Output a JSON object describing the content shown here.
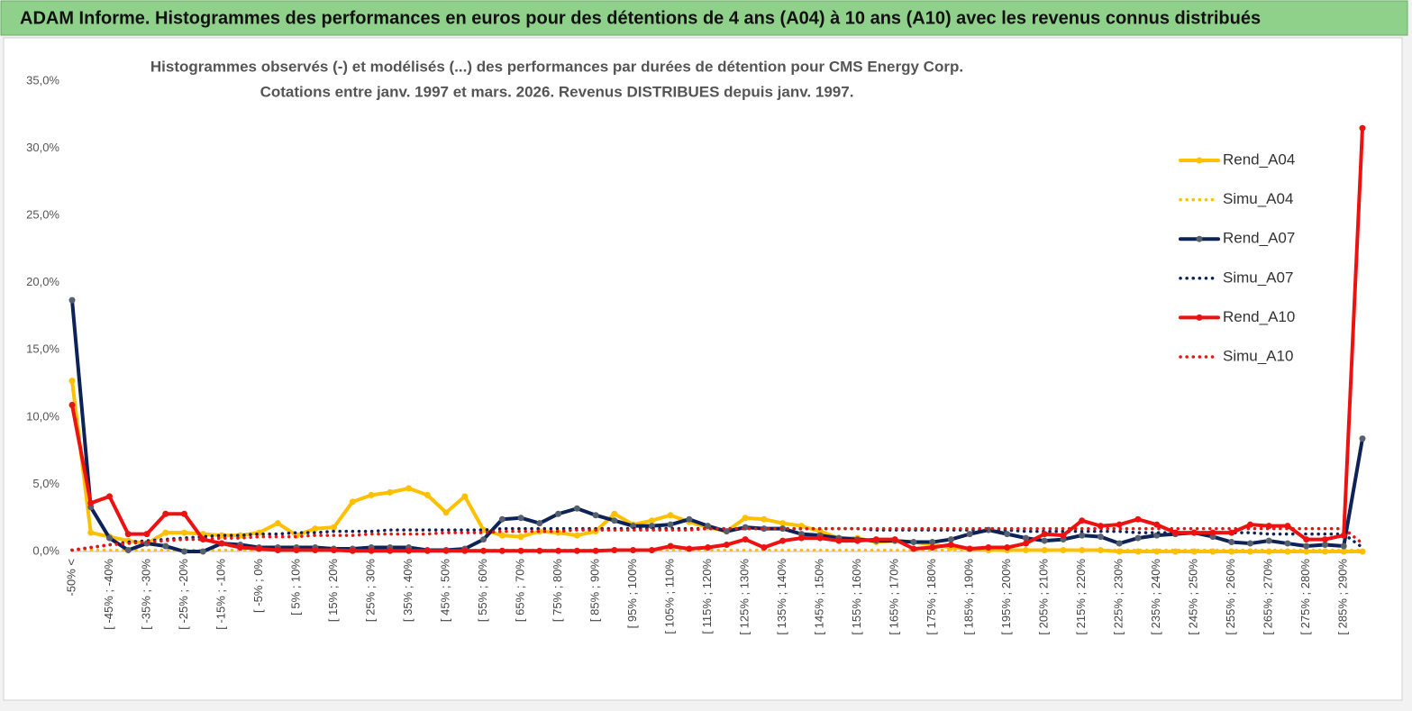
{
  "chart_data": {
    "type": "line",
    "header": "ADAM Informe. Histogrammes des performances en euros pour des détentions de 4 ans (A04) à 10 ans (A10) avec les revenus connus distribués",
    "title": [
      "Histogrammes observés (-) et modélisés (...) des performances par durées de détention pour CMS Energy Corp.",
      "Cotations entre janv. 1997 et mars. 2026. Revenus DISTRIBUES depuis janv. 1997."
    ],
    "categories": [
      "-50% <",
      null,
      "[ -45% ; -40%",
      null,
      "[ -35% ; -30%",
      null,
      "[ -25% ; -20%",
      null,
      "[ -15% ; -10%",
      null,
      "[ -5% ; 0%",
      null,
      "[ 5% ; 10%",
      null,
      "[ 15% ; 20%",
      null,
      "[ 25% ; 30%",
      null,
      "[ 35% ; 40%",
      null,
      "[ 45% ; 50%",
      null,
      "[ 55% ; 60%",
      null,
      "[ 65% ; 70%",
      null,
      "[ 75% ; 80%",
      null,
      "[ 85% ; 90%",
      null,
      "[ 95% ; 100%",
      null,
      "[ 105% ; 110%",
      null,
      "[ 115% ; 120%",
      null,
      "[ 125% ; 130%",
      null,
      "[ 135% ; 140%",
      null,
      "[ 145% ; 150%",
      null,
      "[ 155% ; 160%",
      null,
      "[ 165% ; 170%",
      null,
      "[ 175% ; 180%",
      null,
      "[ 185% ; 190%",
      null,
      "[ 195% ; 200%",
      null,
      "[ 205% ; 210%",
      null,
      "[ 215% ; 220%",
      null,
      "[ 225% ; 230%",
      null,
      "[ 235% ; 240%",
      null,
      "[ 245% ; 250%",
      null,
      "[ 255% ; 260%",
      null,
      "[ 265% ; 270%",
      null,
      "[ 275% ; 280%",
      null,
      "[ 285% ; 290%",
      null
    ],
    "ylim": [
      0,
      35
    ],
    "yticks": [
      {
        "value": 0,
        "label": "0,0%"
      },
      {
        "value": 5,
        "label": "5,0%"
      },
      {
        "value": 10,
        "label": "10,0%"
      },
      {
        "value": 15,
        "label": "15,0%"
      },
      {
        "value": 20,
        "label": "20,0%"
      },
      {
        "value": 25,
        "label": "25,0%"
      },
      {
        "value": 30,
        "label": "30,0%"
      },
      {
        "value": 35,
        "label": "35,0%"
      }
    ],
    "grid": false,
    "legend": "right",
    "series": [
      {
        "name": "Rend_A04",
        "color": "#ffc000",
        "line_style": "solid",
        "marker_color": "#ffc000",
        "values": [
          12.7,
          1.4,
          1.1,
          0.8,
          0.6,
          1.4,
          1.4,
          1.3,
          1.2,
          1.2,
          1.4,
          2.1,
          1.2,
          1.7,
          1.8,
          3.7,
          4.2,
          4.4,
          4.7,
          4.2,
          2.9,
          4.1,
          1.6,
          1.2,
          1.1,
          1.5,
          1.4,
          1.2,
          1.5,
          2.8,
          2.0,
          2.3,
          2.7,
          2.2,
          1.8,
          1.5,
          2.5,
          2.4,
          2.1,
          1.9,
          1.5,
          1.0,
          1.0,
          0.7,
          0.8,
          0.7,
          0.5,
          0.3,
          0.2,
          0.1,
          0.1,
          0.1,
          0.1,
          0.1,
          0.1,
          0.1,
          0,
          0,
          0,
          0,
          0,
          0,
          0,
          0,
          0,
          0,
          0,
          0,
          0,
          0
        ]
      },
      {
        "name": "Simu_A04",
        "color": "#ffc000",
        "line_style": "dotted",
        "values": [
          0.1,
          0.1,
          0.1,
          0.1,
          0.1,
          0.1,
          0.1,
          0.1,
          0.1,
          0.1,
          0.1,
          0.1,
          0.1,
          0.1,
          0.1,
          0.1,
          0.1,
          0.1,
          0.1,
          0.1,
          0.1,
          0.1,
          0.1,
          0.1,
          0.1,
          0.1,
          0.1,
          0.1,
          0.1,
          0.1,
          0.1,
          0.1,
          0.1,
          0.1,
          0.1,
          0.1,
          0.1,
          0.1,
          0.1,
          0.1,
          0.1,
          0.1,
          0.1,
          0.1,
          0.1,
          0.1,
          0.1,
          0.1,
          0.1,
          0.1,
          0.1,
          0.1,
          0.1,
          0.1,
          0.1,
          0.1,
          0.1,
          0.1,
          0.1,
          0.1,
          0.1,
          0.1,
          0.1,
          0.1,
          0.1,
          0.1,
          0.1,
          0.1,
          0.1,
          0.1
        ]
      },
      {
        "name": "Rend_A07",
        "color": "#0d2257",
        "line_style": "solid",
        "marker_color": "#56606e",
        "values": [
          18.7,
          3.3,
          1.0,
          0.1,
          0.6,
          0.4,
          0.0,
          0.0,
          0.6,
          0.5,
          0.3,
          0.3,
          0.3,
          0.3,
          0.2,
          0.2,
          0.3,
          0.3,
          0.3,
          0.1,
          0.1,
          0.2,
          0.9,
          2.4,
          2.5,
          2.1,
          2.8,
          3.2,
          2.7,
          2.3,
          1.9,
          1.9,
          2.0,
          2.4,
          1.9,
          1.5,
          1.8,
          1.7,
          1.7,
          1.3,
          1.2,
          1.0,
          0.9,
          0.8,
          0.8,
          0.7,
          0.7,
          0.9,
          1.3,
          1.6,
          1.3,
          1.0,
          0.8,
          0.9,
          1.2,
          1.1,
          0.6,
          1.0,
          1.2,
          1.3,
          1.4,
          1.1,
          0.7,
          0.6,
          0.8,
          0.6,
          0.4,
          0.5,
          0.4,
          8.4
        ]
      },
      {
        "name": "Simu_A07",
        "color": "#0d2257",
        "line_style": "dotted",
        "values": [
          0.1,
          0.3,
          0.5,
          0.7,
          0.8,
          0.9,
          1.0,
          1.1,
          1.2,
          1.2,
          1.3,
          1.3,
          1.4,
          1.4,
          1.5,
          1.5,
          1.5,
          1.6,
          1.6,
          1.6,
          1.6,
          1.6,
          1.6,
          1.7,
          1.7,
          1.7,
          1.7,
          1.7,
          1.7,
          1.7,
          1.7,
          1.7,
          1.7,
          1.7,
          1.7,
          1.7,
          1.7,
          1.7,
          1.7,
          1.7,
          1.7,
          1.7,
          1.7,
          1.6,
          1.6,
          1.6,
          1.6,
          1.6,
          1.6,
          1.6,
          1.6,
          1.5,
          1.5,
          1.5,
          1.5,
          1.5,
          1.5,
          1.4,
          1.4,
          1.4,
          1.4,
          1.4,
          1.4,
          1.4,
          1.3,
          1.3,
          1.3,
          1.3,
          1.3,
          0.3
        ]
      },
      {
        "name": "Rend_A10",
        "color": "#ee1111",
        "line_style": "solid",
        "marker_color": "#ee1111",
        "values": [
          10.9,
          3.6,
          4.1,
          1.3,
          1.3,
          2.8,
          2.8,
          0.9,
          0.6,
          0.3,
          0.2,
          0.1,
          0.1,
          0.1,
          0.1,
          0.05,
          0.05,
          0.05,
          0.05,
          0.05,
          0.05,
          0.05,
          0.05,
          0.05,
          0.05,
          0.05,
          0.05,
          0.05,
          0.05,
          0.1,
          0.1,
          0.1,
          0.4,
          0.2,
          0.3,
          0.5,
          0.9,
          0.3,
          0.8,
          1.0,
          1.0,
          0.8,
          0.8,
          0.9,
          0.9,
          0.2,
          0.3,
          0.5,
          0.2,
          0.3,
          0.3,
          0.6,
          1.3,
          1.2,
          2.3,
          1.9,
          2.0,
          2.4,
          2.0,
          1.4,
          1.4,
          1.4,
          1.4,
          2.0,
          1.9,
          1.9,
          0.9,
          0.9,
          1.2,
          31.5
        ]
      },
      {
        "name": "Simu_A10",
        "color": "#ee1111",
        "line_style": "dotted",
        "values": [
          0.1,
          0.3,
          0.5,
          0.6,
          0.7,
          0.8,
          0.9,
          0.9,
          1.0,
          1.0,
          1.1,
          1.1,
          1.1,
          1.2,
          1.2,
          1.2,
          1.3,
          1.3,
          1.3,
          1.3,
          1.4,
          1.4,
          1.4,
          1.5,
          1.5,
          1.5,
          1.5,
          1.6,
          1.6,
          1.6,
          1.6,
          1.6,
          1.6,
          1.6,
          1.7,
          1.7,
          1.7,
          1.7,
          1.7,
          1.7,
          1.7,
          1.7,
          1.7,
          1.7,
          1.7,
          1.7,
          1.7,
          1.7,
          1.7,
          1.7,
          1.7,
          1.7,
          1.7,
          1.7,
          1.7,
          1.7,
          1.7,
          1.7,
          1.7,
          1.7,
          1.7,
          1.7,
          1.7,
          1.7,
          1.7,
          1.7,
          1.7,
          1.7,
          1.7,
          0.6
        ]
      }
    ]
  }
}
